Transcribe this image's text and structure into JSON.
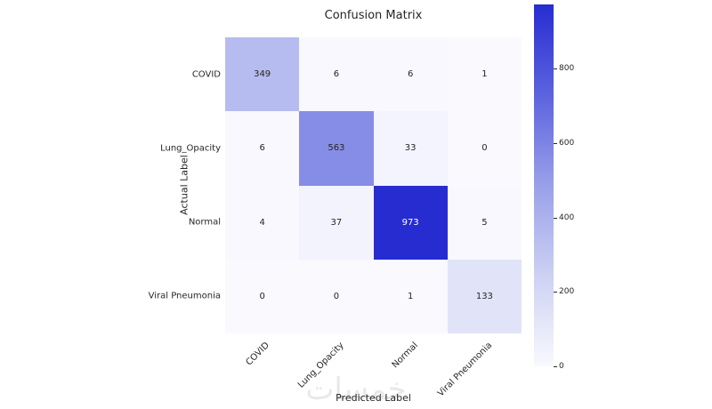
{
  "chart_data": {
    "type": "heatmap",
    "title": "Confusion Matrix",
    "xlabel": "Predicted Label",
    "ylabel": "Actual Label",
    "x_categories": [
      "COVID",
      "Lung_Opacity",
      "Normal",
      "Viral Pneumonia"
    ],
    "y_categories": [
      "COVID",
      "Lung_Opacity",
      "Normal",
      "Viral Pneumonia"
    ],
    "matrix": [
      [
        349,
        6,
        6,
        1
      ],
      [
        6,
        563,
        33,
        0
      ],
      [
        4,
        37,
        973,
        5
      ],
      [
        0,
        0,
        1,
        133
      ]
    ],
    "vmin": 0,
    "vmax": 973,
    "colorbar_ticks": [
      0,
      200,
      400,
      600,
      800
    ],
    "colormap_stops": [
      {
        "pos": 0,
        "color": "#f9f9fe"
      },
      {
        "pos": 0.25,
        "color": "#cdd1f3"
      },
      {
        "pos": 0.5,
        "color": "#99a0e9"
      },
      {
        "pos": 0.75,
        "color": "#5c63de"
      },
      {
        "pos": 1,
        "color": "#272cd1"
      }
    ],
    "grid": false,
    "legend_position": "right"
  },
  "watermark": "خمسات"
}
